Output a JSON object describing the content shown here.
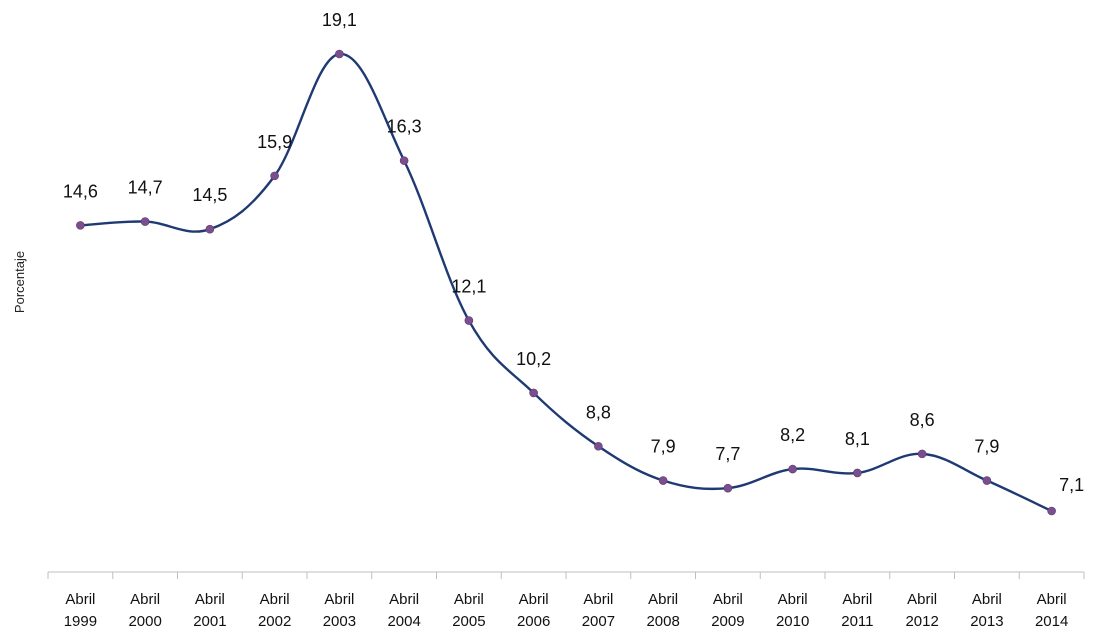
{
  "chart_data": {
    "type": "line",
    "title": "",
    "xlabel": "",
    "ylabel": "Porcentaje",
    "categories": [
      [
        "Abril",
        "1999"
      ],
      [
        "Abril",
        "2000"
      ],
      [
        "Abril",
        "2001"
      ],
      [
        "Abril",
        "2002"
      ],
      [
        "Abril",
        "2003"
      ],
      [
        "Abril",
        "2004"
      ],
      [
        "Abril",
        "2005"
      ],
      [
        "Abril",
        "2006"
      ],
      [
        "Abril",
        "2007"
      ],
      [
        "Abril",
        "2008"
      ],
      [
        "Abril",
        "2009"
      ],
      [
        "Abril",
        "2010"
      ],
      [
        "Abril",
        "2011"
      ],
      [
        "Abril",
        "2012"
      ],
      [
        "Abril",
        "2013"
      ],
      [
        "Abril",
        "2014"
      ]
    ],
    "series": [
      {
        "values": [
          14.6,
          14.7,
          14.5,
          15.9,
          19.1,
          16.3,
          12.1,
          10.2,
          8.8,
          7.9,
          7.7,
          8.2,
          8.1,
          8.6,
          7.9,
          7.1
        ],
        "labels": [
          "14,6",
          "14,7",
          "14,5",
          "15,9",
          "19,1",
          "16,3",
          "12,1",
          "10,2",
          "8,8",
          "7,9",
          "7,7",
          "8,2",
          "8,1",
          "8,6",
          "7,9",
          "7,1"
        ]
      }
    ],
    "ylim": [
      5,
      21
    ],
    "grid": false,
    "legend": "none",
    "colors": {
      "line": "#1f3a73",
      "marker": "#7b4f8f"
    }
  }
}
